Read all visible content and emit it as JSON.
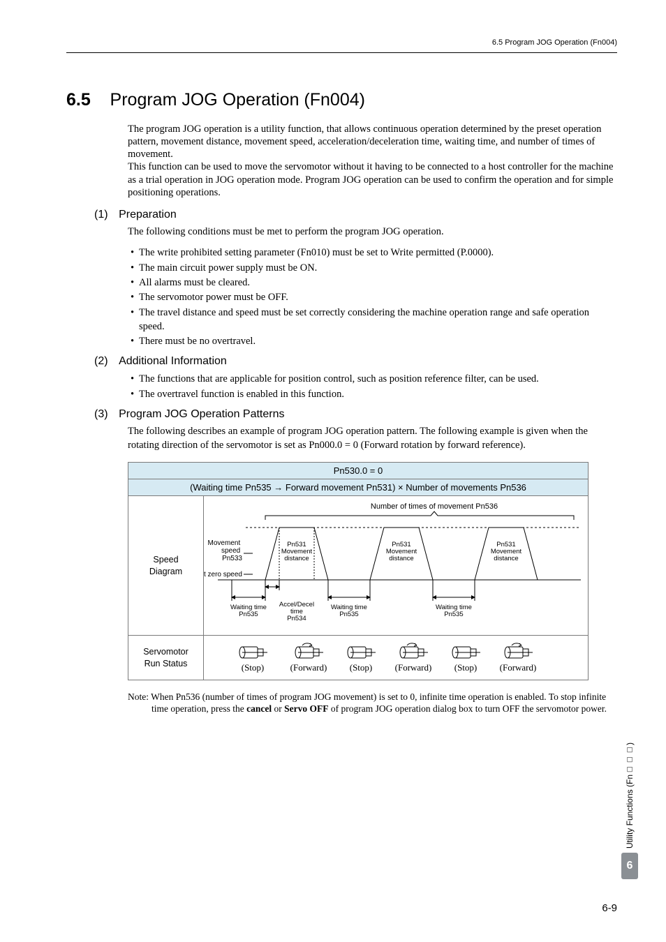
{
  "header": {
    "text": "6.5  Program JOG Operation (Fn004)"
  },
  "section": {
    "num": "6.5",
    "title": "Program JOG Operation (Fn004)"
  },
  "intro": {
    "p1": "The program JOG operation is a utility function, that allows continuous operation determined by the preset operation pattern, movement distance, movement speed, acceleration/deceleration time, waiting time, and number of times of movement.",
    "p2": "This function can be used to move the servomotor without it having to be connected to a host controller for the machine as a trial operation in JOG operation mode. Program JOG operation can be used to confirm the operation and for simple positioning operations."
  },
  "sub1": {
    "num": "(1)",
    "title": "Preparation",
    "lead": "The following conditions must be met to perform the program JOG operation.",
    "items": [
      "The write prohibited setting parameter (Fn010) must be set to Write permitted (P.0000).",
      "The main circuit power supply must be ON.",
      "All alarms must be cleared.",
      "The servomotor power must be OFF.",
      "The travel distance and speed must be set correctly considering the machine operation range and safe operation speed.",
      "There must be no overtravel."
    ]
  },
  "sub2": {
    "num": "(2)",
    "title": "Additional Information",
    "items": [
      "The functions that are applicable for position control, such as position reference filter, can be used.",
      "The overtravel function is enabled in this function."
    ]
  },
  "sub3": {
    "num": "(3)",
    "title": "Program JOG Operation Patterns",
    "lead": "The following describes an example of program JOG operation pattern. The following example is given when the rotating direction of the servomotor is set as Pn000.0 = 0 (Forward rotation by forward reference)."
  },
  "diagram": {
    "header1": "Pn530.0 = 0",
    "header2": "(Waiting time Pn535 → Forward movement Pn531) × Number of movements Pn536",
    "left_speed": "Speed\nDiagram",
    "left_run": "Servomotor\nRun Status",
    "top_label": "Number of times of movement Pn536",
    "mov_speed": "Movement\nspeed\nPn533",
    "at_zero": "At zero speed",
    "pn531_label": "Pn531\nMovement\ndistance",
    "waiting": "Waiting time\nPn535",
    "accel": "Accel/Decel\ntime\nPn534",
    "status": [
      "(Stop)",
      "(Forward)",
      "(Stop)",
      "(Forward)",
      "(Stop)",
      "(Forward)"
    ],
    "colors": {
      "bg": "#d6eaf3",
      "line": "#000000"
    }
  },
  "note": {
    "label": "Note:",
    "text_a": "When Pn536 (number of times of program JOG movement) is set to 0, infinite time operation is enabled. To stop infinite time operation, press the ",
    "bold1": "cancel",
    "text_b": " or ",
    "bold2": "Servo OFF",
    "text_c": " of program JOG operation dialog box to turn OFF the servomotor power."
  },
  "side": {
    "label": "Utility Functions (Fn□□□)",
    "num": "6"
  },
  "page": "6-9"
}
